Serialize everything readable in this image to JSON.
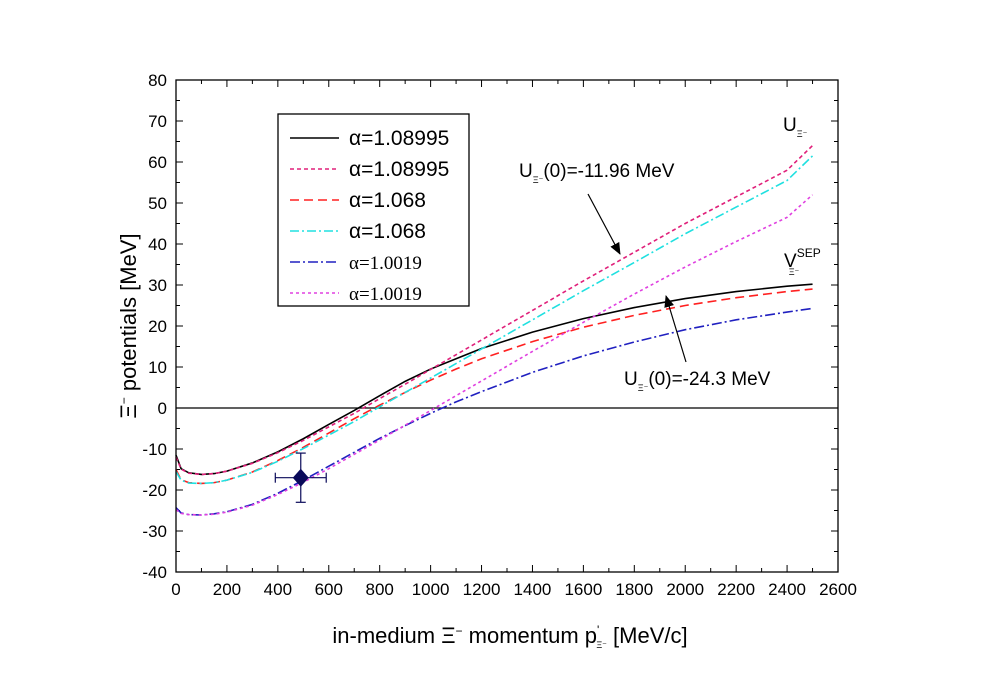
{
  "chart_data": {
    "type": "line",
    "xlabel": {
      "pre": "in-medium Ξ",
      "sup": "−",
      "mid": " momentum p",
      "sup2": "'",
      "sub": "Ξ⁻",
      "post": " [MeV/c]"
    },
    "ylabel": {
      "pre": "Ξ",
      "sup": "−",
      "post": " potentials [MeV]"
    },
    "xlim": [
      0,
      2600
    ],
    "ylim": [
      -40,
      80
    ],
    "xticks": [
      0,
      200,
      400,
      600,
      800,
      1000,
      1200,
      1400,
      1600,
      1800,
      2000,
      2200,
      2400,
      2600
    ],
    "yticks": [
      -40,
      -30,
      -20,
      -10,
      0,
      10,
      20,
      30,
      40,
      50,
      60,
      70,
      80
    ],
    "zero_line": true,
    "legend_position": "top-left",
    "series": [
      {
        "name": "α=1.08995",
        "color": "#000000",
        "dash": "",
        "serif": false,
        "x": [
          0,
          20,
          50,
          100,
          150,
          200,
          300,
          400,
          500,
          600,
          700,
          800,
          900,
          1000,
          1100,
          1200,
          1400,
          1600,
          1800,
          2000,
          2200,
          2400,
          2500
        ],
        "y": [
          -11.5,
          -14.8,
          -15.8,
          -16.2,
          -16.0,
          -15.4,
          -13.4,
          -10.7,
          -7.5,
          -4.0,
          -0.6,
          3.0,
          6.5,
          9.5,
          12.0,
          14.5,
          18.5,
          21.8,
          24.5,
          26.7,
          28.4,
          29.7,
          30.2
        ]
      },
      {
        "name": "α=1.08995",
        "color": "#e0207a",
        "dash": "4,3",
        "serif": false,
        "x": [
          0,
          20,
          50,
          100,
          150,
          200,
          300,
          400,
          500,
          600,
          700,
          800,
          900,
          1000,
          1200,
          1400,
          1600,
          1800,
          2000,
          2200,
          2400,
          2500
        ],
        "y": [
          -11.96,
          -14.9,
          -15.9,
          -16.2,
          -16.0,
          -15.4,
          -13.5,
          -10.9,
          -7.9,
          -4.6,
          -1.3,
          2.3,
          5.8,
          9.4,
          16.6,
          23.8,
          31.0,
          38.0,
          45.0,
          51.5,
          58.0,
          64.0
        ]
      },
      {
        "name": "α=1.068",
        "color": "#ff2020",
        "dash": "9,5",
        "serif": false,
        "x": [
          0,
          20,
          50,
          100,
          150,
          200,
          300,
          400,
          500,
          600,
          700,
          800,
          900,
          1000,
          1100,
          1200,
          1400,
          1600,
          1800,
          2000,
          2200,
          2400,
          2500
        ],
        "y": [
          -15.0,
          -17.5,
          -18.2,
          -18.4,
          -18.2,
          -17.6,
          -15.6,
          -12.8,
          -9.6,
          -6.1,
          -2.6,
          0.7,
          3.8,
          6.8,
          9.5,
          12.0,
          16.2,
          19.7,
          22.6,
          25.0,
          26.9,
          28.4,
          29.0
        ]
      },
      {
        "name": "α=1.068",
        "color": "#20e0e0",
        "dash": "9,3,2,3",
        "serif": false,
        "x": [
          0,
          20,
          50,
          100,
          150,
          200,
          300,
          400,
          500,
          600,
          700,
          800,
          900,
          1000,
          1200,
          1400,
          1600,
          1800,
          2000,
          2200,
          2400,
          2500
        ],
        "y": [
          -15.5,
          -17.6,
          -18.3,
          -18.4,
          -18.2,
          -17.6,
          -15.7,
          -13.0,
          -9.9,
          -6.6,
          -3.3,
          0.3,
          3.8,
          7.3,
          14.4,
          21.5,
          28.6,
          35.5,
          42.5,
          49.0,
          55.5,
          61.5
        ]
      },
      {
        "name": "α=1.0019",
        "color": "#2020c0",
        "dash": "10,3,2,3",
        "serif": true,
        "x": [
          0,
          20,
          50,
          100,
          150,
          200,
          300,
          400,
          500,
          600,
          700,
          800,
          900,
          1000,
          1100,
          1200,
          1400,
          1600,
          1800,
          2000,
          2200,
          2400,
          2500
        ],
        "y": [
          -24.3,
          -25.6,
          -26.0,
          -26.1,
          -25.8,
          -25.3,
          -23.5,
          -20.8,
          -17.6,
          -14.2,
          -10.8,
          -7.4,
          -4.3,
          -1.3,
          1.5,
          4.0,
          8.7,
          12.7,
          16.1,
          19.1,
          21.5,
          23.4,
          24.3
        ]
      },
      {
        "name": "α=1.0019",
        "color": "#e040e0",
        "dash": "3,3",
        "serif": true,
        "x": [
          0,
          20,
          50,
          100,
          150,
          200,
          300,
          400,
          500,
          600,
          700,
          800,
          900,
          1000,
          1100,
          1200,
          1400,
          1600,
          1800,
          2000,
          2200,
          2400,
          2500
        ],
        "y": [
          -24.8,
          -25.7,
          -26.0,
          -26.1,
          -25.9,
          -25.4,
          -23.7,
          -21.1,
          -18.1,
          -14.8,
          -11.3,
          -7.8,
          -4.2,
          -0.6,
          3.0,
          6.6,
          13.8,
          20.9,
          27.8,
          34.4,
          40.6,
          46.5,
          52.0
        ]
      }
    ],
    "data_point": {
      "x": 490,
      "y": -17,
      "xerr": 100,
      "yerr": 6,
      "color": "#0a0a5a"
    },
    "annotations": {
      "u_label": {
        "main": "U",
        "sub": "Ξ⁻"
      },
      "v_label": {
        "main": "V",
        "sup": "SEP",
        "sub": "Ξ⁻"
      },
      "u0_a": {
        "main": "U",
        "sub": "Ξ⁻",
        "post": "(0)=-11.96 MeV"
      },
      "u0_b": {
        "main": "U",
        "sub": "Ξ⁻",
        "post": "(0)=-24.3 MeV"
      }
    }
  }
}
